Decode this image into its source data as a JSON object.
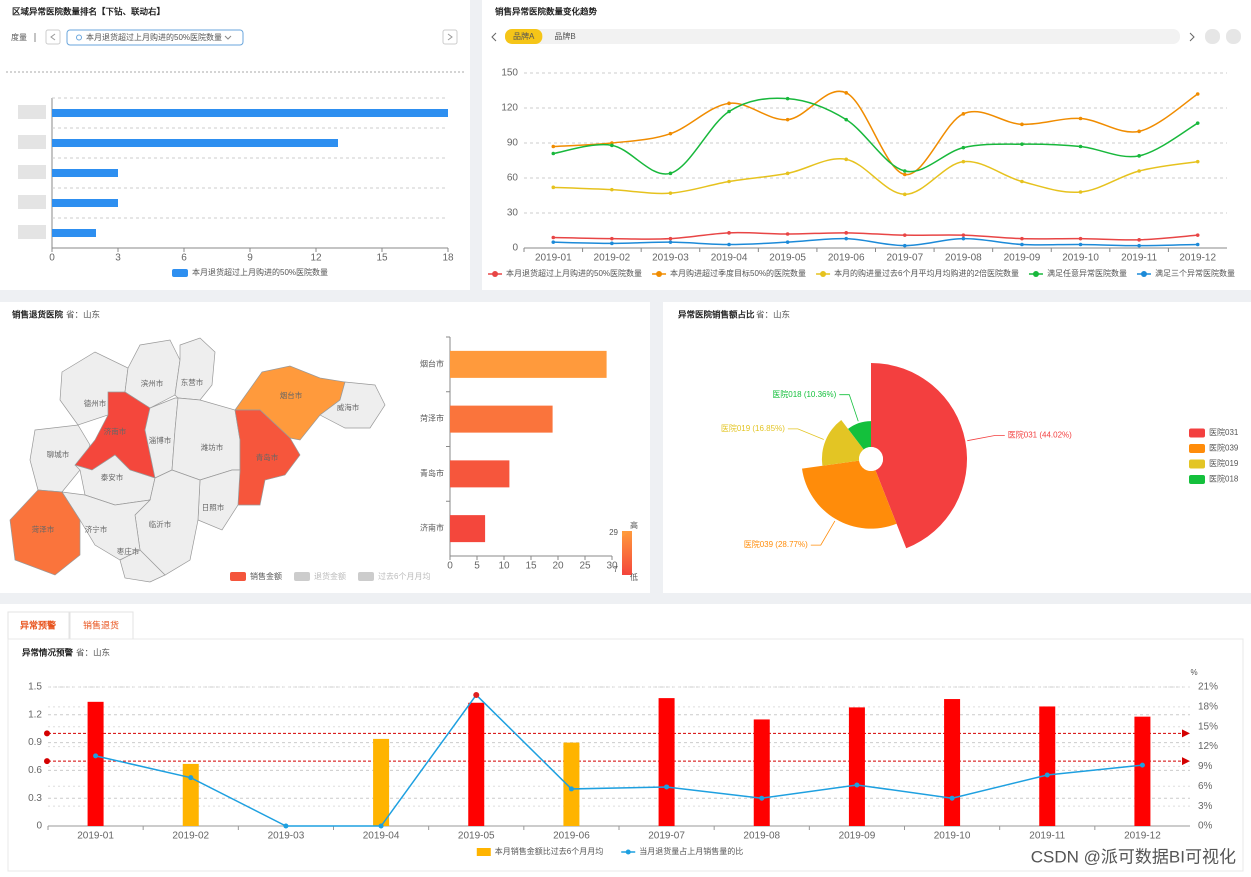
{
  "page": {
    "tabs": [
      "异常预警",
      "销售退货"
    ],
    "watermark": "CSDN @派可数据BI可视化"
  },
  "chart_data": [
    {
      "type": "bar",
      "orientation": "horizontal",
      "title": "区域异常医院数量排名【下钻、联动右】",
      "measure_label": "度量",
      "filter": "本月退货超过上月购进的50%医院数量",
      "categories": [
        null,
        null,
        null,
        null,
        null
      ],
      "series": [
        {
          "name": "本月退货超过上月购进的50%医院数量",
          "color": "#2e8ff0",
          "values": [
            18,
            13,
            3,
            3,
            2
          ]
        }
      ],
      "xlim": [
        0,
        18
      ],
      "xticks": [
        0,
        3,
        6,
        9,
        12,
        15,
        18
      ],
      "grid": true,
      "legend": "bottom"
    },
    {
      "type": "line",
      "title": "销售异常医院数量变化趋势",
      "tabs": [
        "品牌A",
        "品牌B"
      ],
      "smooth": true,
      "categories": [
        "2019-01",
        "2019-02",
        "2019-03",
        "2019-04",
        "2019-05",
        "2019-06",
        "2019-07",
        "2019-08",
        "2019-09",
        "2019-10",
        "2019-11",
        "2019-12"
      ],
      "series": [
        {
          "name": "本月退货超过上月购进的50%医院数量",
          "color": "#e84545",
          "values": [
            9,
            8,
            8,
            13,
            12,
            13,
            11,
            11,
            8,
            8,
            7,
            11
          ]
        },
        {
          "name": "本月购进超过季度目标50%的医院数量",
          "color": "#f08c00",
          "values": [
            87,
            90,
            98,
            124,
            110,
            133,
            63,
            115,
            106,
            111,
            100,
            132
          ]
        },
        {
          "name": "本月的购进量过去6个月平均月均购进的2倍医院数量",
          "color": "#e6c21e",
          "values": [
            52,
            50,
            47,
            57,
            64,
            76,
            46,
            74,
            57,
            48,
            66,
            74
          ]
        },
        {
          "name": "满足任意异常医院数量",
          "color": "#18b83c",
          "values": [
            81,
            88,
            64,
            117,
            128,
            110,
            66,
            86,
            89,
            87,
            79,
            107
          ]
        },
        {
          "name": "满足三个异常医院数量",
          "color": "#1c8ad8",
          "values": [
            5,
            4,
            5,
            3,
            5,
            8,
            2,
            8,
            3,
            3,
            2,
            3
          ]
        }
      ],
      "ylim": [
        0,
        150
      ],
      "yticks": [
        0,
        30,
        60,
        90,
        120,
        150
      ],
      "grid": true,
      "legend": "bottom"
    },
    {
      "type": "map",
      "title": "销售退货医院",
      "subtitle": "省：山东",
      "regions": [
        "德州市",
        "滨州市",
        "东营市",
        "烟台市",
        "威海市",
        "聊城市",
        "济南市",
        "淄博市",
        "潍坊市",
        "青岛市",
        "泰安市",
        "日照市",
        "临沂市",
        "济宁市",
        "菏泽市",
        "枣庄市"
      ],
      "categories": [
        "烟台市",
        "菏泽市",
        "青岛市",
        "济南市"
      ],
      "values": [
        29,
        19,
        11,
        6.5
      ],
      "xlim": [
        0,
        30
      ],
      "xticks": [
        0,
        5,
        10,
        15,
        20,
        25,
        30
      ],
      "visual_map": {
        "range": [
          7,
          29
        ],
        "colors": [
          "#f4473c",
          "#ff9a3c"
        ],
        "labels": [
          "低",
          "高"
        ]
      },
      "legend": [
        {
          "name": "销售金额",
          "color": "#f4553c"
        },
        {
          "name": "退货金额",
          "color": "#cccccc"
        },
        {
          "name": "过去6个月月均",
          "color": "#cccccc"
        }
      ]
    },
    {
      "type": "pie",
      "rose": true,
      "title": "异常医院销售额占比",
      "subtitle": "省：山东",
      "categories": [
        "医院031",
        "医院039",
        "医院019",
        "医院018"
      ],
      "values": [
        44.02,
        28.77,
        16.85,
        10.36
      ],
      "value_labels": [
        "医院031 (44.02%)",
        "医院039 (28.77%)",
        "医院019 (16.85%)",
        "医院018 (10.36%)"
      ],
      "colors": [
        "#f33f3f",
        "#ff8c0a",
        "#e3c524",
        "#14c03c"
      ],
      "legend": "right"
    },
    {
      "type": "bar",
      "orientation": "vertical",
      "title": "异常情况预警",
      "subtitle": "省：山东",
      "y2_label": "%",
      "categories": [
        "2019-01",
        "2019-02",
        "2019-03",
        "2019-04",
        "2019-05",
        "2019-06",
        "2019-07",
        "2019-08",
        "2019-09",
        "2019-10",
        "2019-11",
        "2019-12"
      ],
      "series": [
        {
          "name": "本月销售金额比过去6个月月均",
          "type": "bar",
          "color": "#ffb400",
          "alert_color": "#ff0000",
          "values": [
            1.34,
            0.67,
            null,
            0.94,
            1.33,
            0.9,
            1.38,
            1.15,
            1.28,
            1.37,
            1.29,
            1.18
          ]
        },
        {
          "name": "当月退货量占上月销售量的比",
          "type": "line",
          "axis": "y2",
          "color": "#1ea0e0",
          "highlight_max": "#e02020",
          "values": [
            10.6,
            7.3,
            0,
            0,
            19.8,
            5.6,
            5.9,
            4.2,
            6.2,
            4.2,
            7.7,
            9.2
          ]
        }
      ],
      "mark_lines": [
        1,
        0.7
      ],
      "mark_line_color": "#d40000",
      "ylim": [
        0,
        1.5
      ],
      "yticks": [
        0,
        0.3,
        0.6,
        0.9,
        1.2,
        1.5
      ],
      "y2lim": [
        0,
        21
      ],
      "y2ticks": [
        {
          "value": 0,
          "label": "0%"
        },
        {
          "value": 3,
          "label": "3%"
        },
        {
          "value": 6,
          "label": "6%"
        },
        {
          "value": 9,
          "label": "9%"
        },
        {
          "value": 12,
          "label": "12%"
        },
        {
          "value": 15,
          "label": "15%"
        },
        {
          "value": 18,
          "label": "18%"
        },
        {
          "value": 21,
          "label": "21%"
        }
      ],
      "grid": true,
      "legend": "bottom"
    }
  ]
}
